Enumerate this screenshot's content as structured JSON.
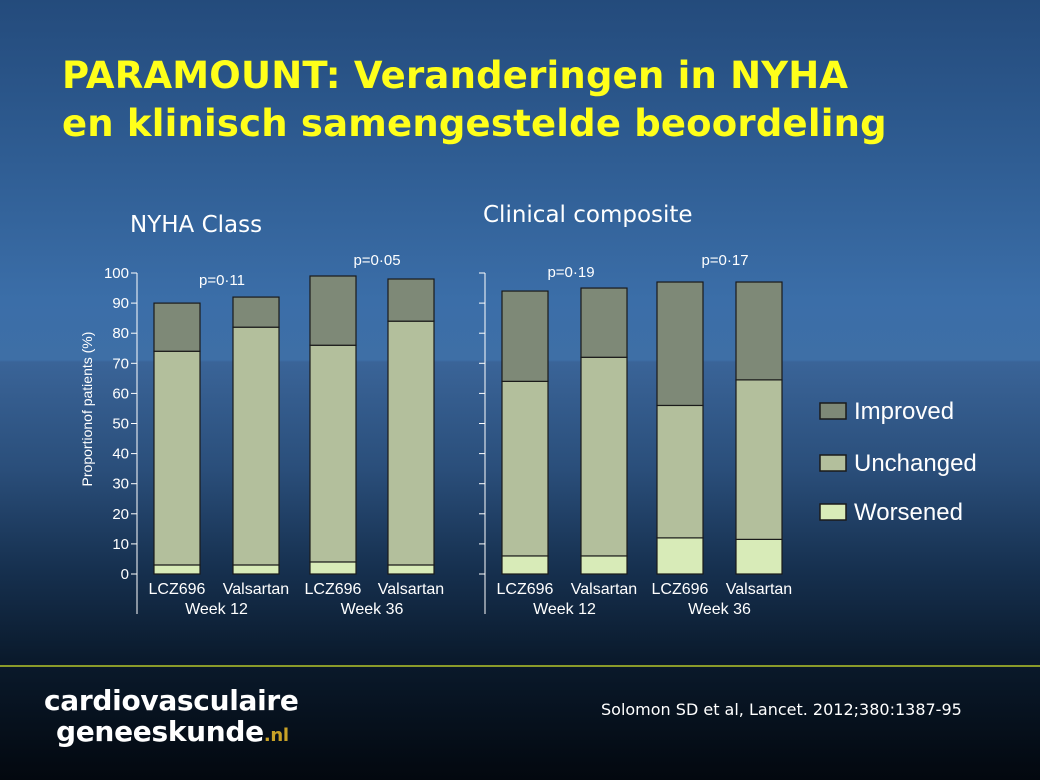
{
  "slide": {
    "title_line1": "PARAMOUNT: Veranderingen in NYHA",
    "title_line2": "en klinisch samengestelde beoordeling",
    "title_color": "#ffff1a"
  },
  "footer": {
    "logo_line1": "cardiovasculaire",
    "logo_line2": "geneeskunde",
    "logo_suffix": ".nl",
    "citation": "Solomon SD et al, Lancet. 2012;380:1387-95"
  },
  "colors": {
    "Improved": "#7e8977",
    "Unchanged": "#b3bf9c",
    "Worsened": "#d8ebb8",
    "stroke": "#1a1a1a"
  },
  "chart_data": [
    {
      "type": "bar",
      "stacked": true,
      "title": "NYHA Class",
      "ylabel": "Proportionof patients (%)",
      "ylim": [
        0,
        100
      ],
      "yticks": [
        0,
        10,
        20,
        30,
        40,
        50,
        60,
        70,
        80,
        90,
        100
      ],
      "categories": [
        "LCZ696",
        "Valsartan",
        "LCZ696",
        "Valsartan"
      ],
      "groups": [
        {
          "label": "Week 12",
          "p_value": "p=0·11"
        },
        {
          "label": "Week 36",
          "p_value": "p=0·05"
        }
      ],
      "series": [
        {
          "name": "Worsened",
          "values": [
            3,
            3,
            4,
            3
          ]
        },
        {
          "name": "Unchanged",
          "values": [
            71,
            79,
            72,
            81
          ]
        },
        {
          "name": "Improved",
          "values": [
            16,
            10,
            23,
            14
          ]
        }
      ]
    },
    {
      "type": "bar",
      "stacked": true,
      "title": "Clinical composite",
      "ylim": [
        0,
        100
      ],
      "yticks": [
        0,
        10,
        20,
        30,
        40,
        50,
        60,
        70,
        80,
        90,
        100
      ],
      "categories": [
        "LCZ696",
        "Valsartan",
        "LCZ696",
        "Valsartan"
      ],
      "groups": [
        {
          "label": "Week 12",
          "p_value": "p=0·19"
        },
        {
          "label": "Week 36",
          "p_value": "p=0·17"
        }
      ],
      "series": [
        {
          "name": "Worsened",
          "values": [
            6,
            6,
            12,
            11.5
          ]
        },
        {
          "name": "Unchanged",
          "values": [
            58,
            66,
            44,
            53
          ]
        },
        {
          "name": "Improved",
          "values": [
            30,
            23,
            41,
            32.5
          ]
        }
      ]
    }
  ],
  "legend": {
    "placement": "right",
    "items": [
      "Improved",
      "Unchanged",
      "Worsened"
    ]
  }
}
